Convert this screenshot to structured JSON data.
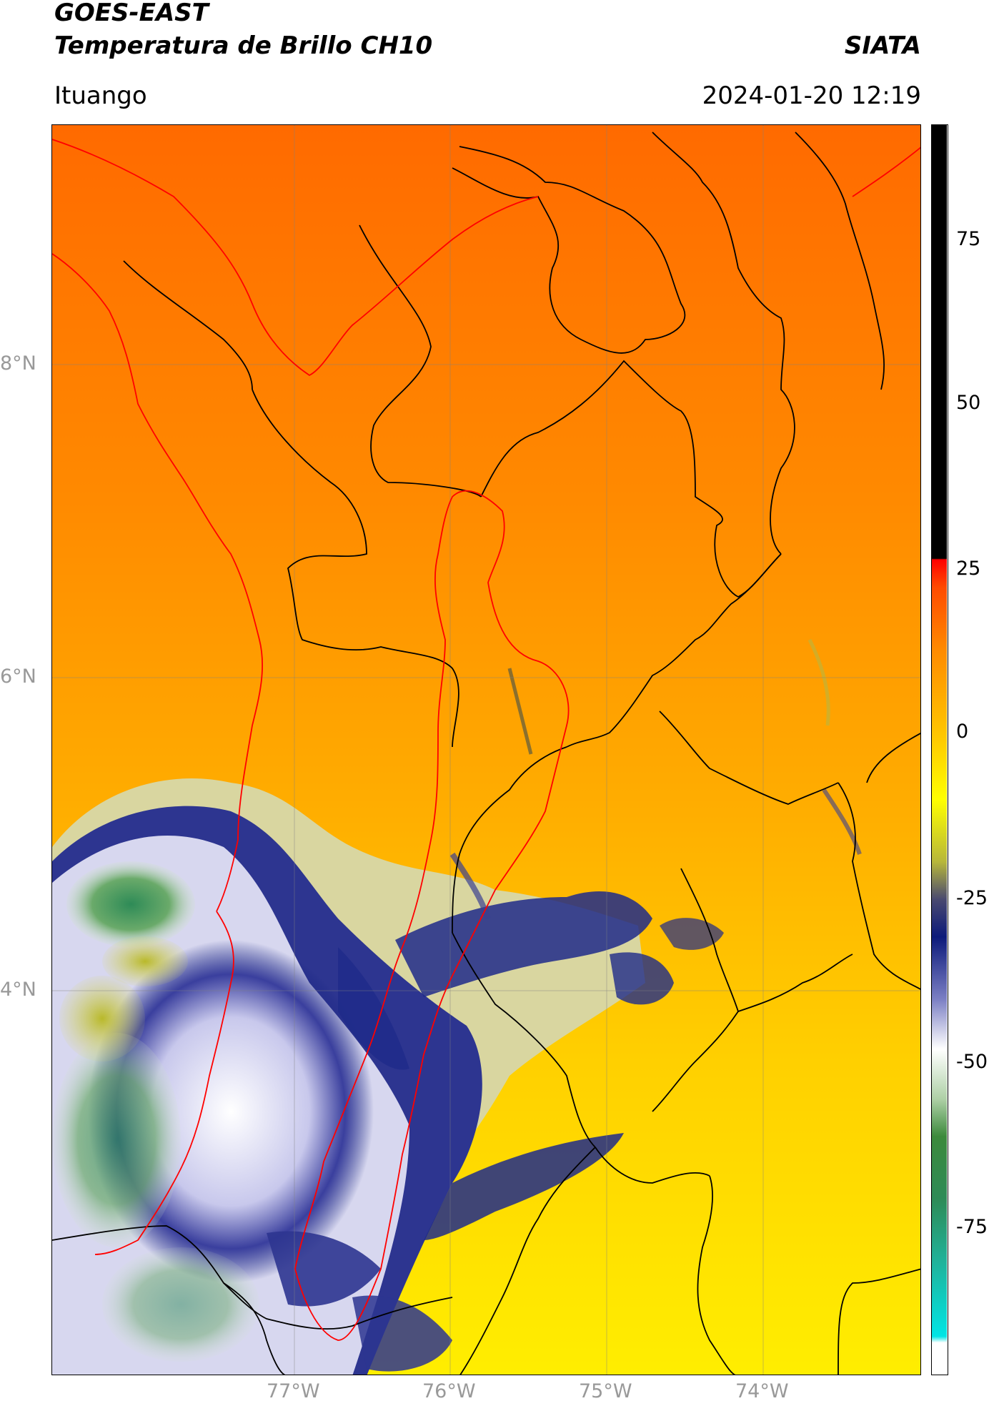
{
  "header": {
    "satellite": "GOES-EAST",
    "product": "Temperatura de Brillo CH10",
    "org": "SIATA",
    "location": "Ituango",
    "datetime": "2024-01-20 12:19"
  },
  "axes": {
    "lat_ticks": [
      "8°N",
      "6°N",
      "4°N"
    ],
    "lon_ticks": [
      "77°W",
      "76°W",
      "75°W",
      "74°W"
    ]
  },
  "colorbar": {
    "ticks": [
      "75",
      "50",
      "25",
      "0",
      "-25",
      "-50",
      "-75"
    ],
    "colors": {
      "black": "#000000",
      "red": "#ff0000",
      "orange": "#ff7f00",
      "yellow": "#ffff00",
      "navy": "#0c1a7a",
      "white": "#ffffff",
      "green": "#2e8b57",
      "cyan": "#00e5e5"
    }
  }
}
